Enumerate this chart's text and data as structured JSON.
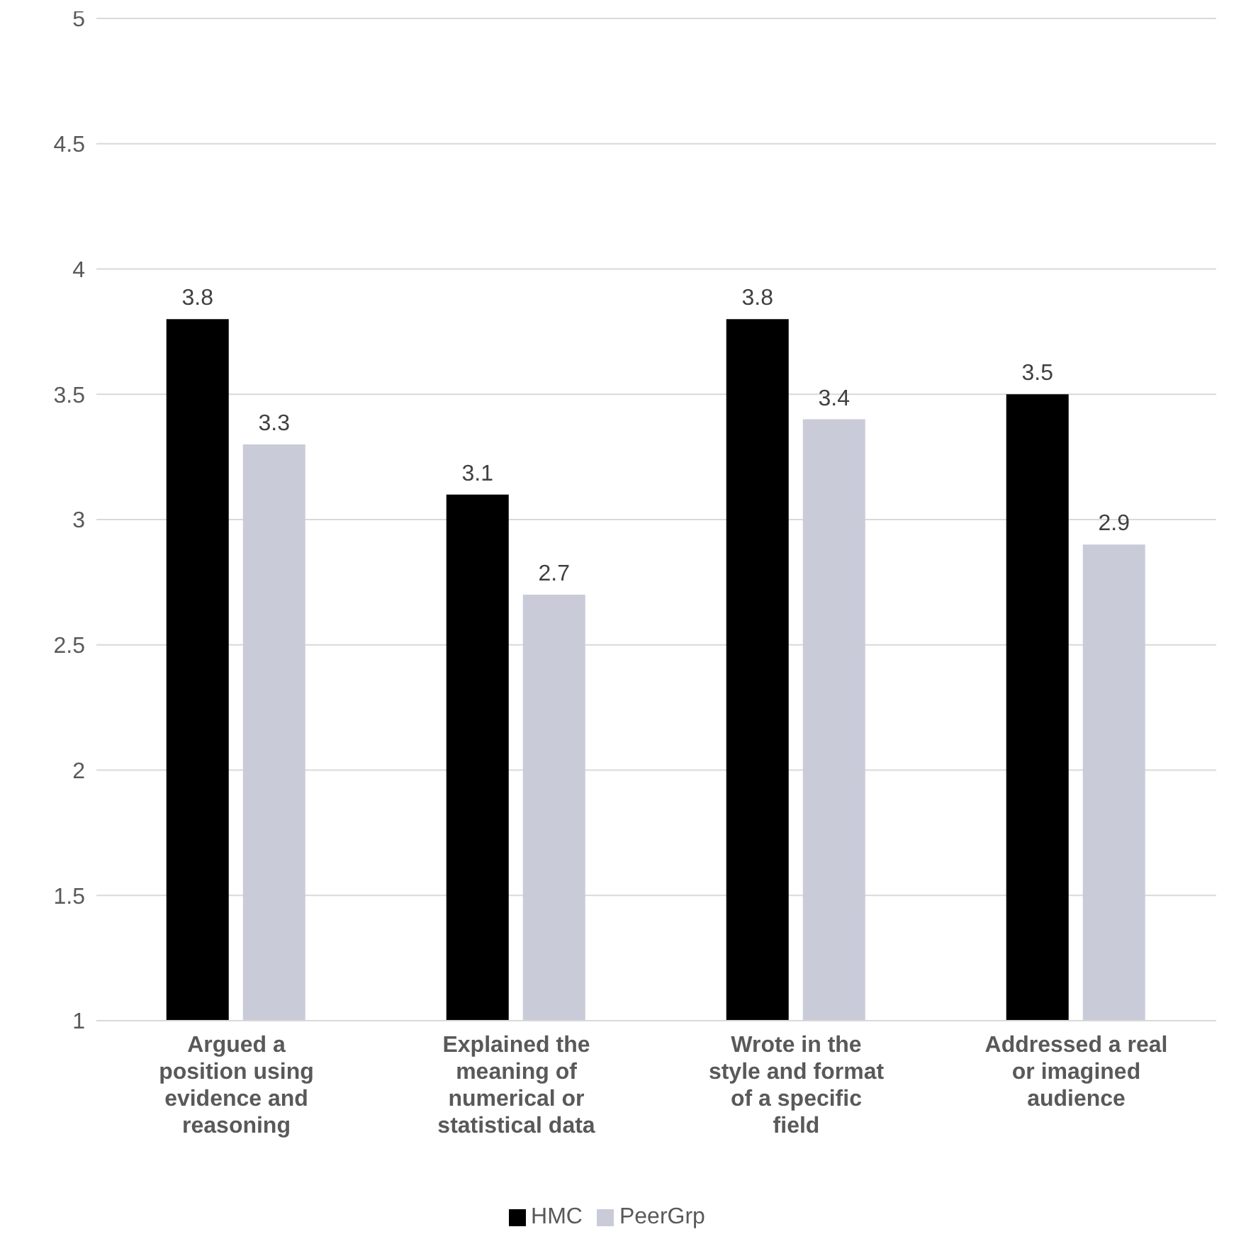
{
  "chart_data": {
    "type": "bar",
    "categories": [
      "Argued a position using evidence and reasoning",
      "Explained the meaning of numerical or statistical data",
      "Wrote in the style and format of a specific field",
      "Addressed a real or imagined audience"
    ],
    "series": [
      {
        "name": "HMC",
        "color": "#000000",
        "values": [
          3.8,
          3.1,
          3.8,
          3.5
        ]
      },
      {
        "name": "PeerGrp",
        "color": "#c9cbd9",
        "values": [
          3.3,
          2.7,
          3.4,
          2.9
        ]
      }
    ],
    "ylim": [
      1,
      5
    ],
    "yticks": [
      1,
      1.5,
      2,
      2.5,
      3,
      3.5,
      4,
      4.5,
      5
    ],
    "grid": "y",
    "legend": "bottom",
    "data_labels": true
  }
}
